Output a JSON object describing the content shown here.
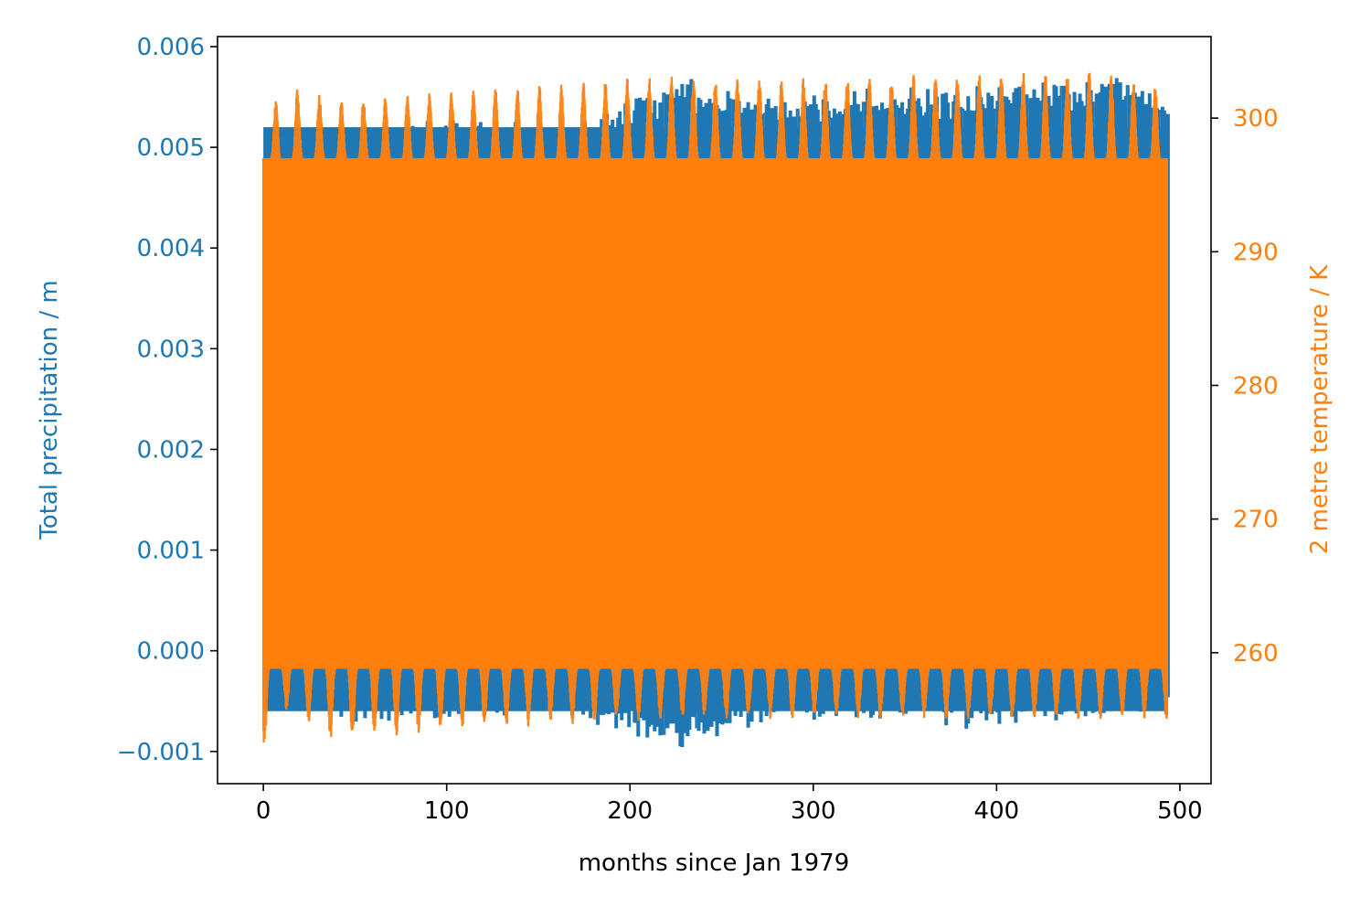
{
  "colors": {
    "precip": "#1f77b4",
    "temp": "#ff7f0e",
    "axis": "#000000",
    "background": "#ffffff"
  },
  "chart_data": {
    "type": "line",
    "title": "",
    "xlabel": "months since Jan 1979",
    "ylabel_left": "Total precipitation / m",
    "ylabel_right": "2 metre temperature / K",
    "xlim": [
      -25,
      517
    ],
    "ylim_left": [
      -0.00132,
      0.0061
    ],
    "ylim_right": [
      250.2,
      306.1
    ],
    "x_ticks": [
      0,
      100,
      200,
      300,
      400,
      500
    ],
    "x_tick_labels": [
      "0",
      "100",
      "200",
      "300",
      "400",
      "500"
    ],
    "y_left_ticks": [
      -0.001,
      0.0,
      0.001,
      0.002,
      0.003,
      0.004,
      0.005,
      0.006
    ],
    "y_left_tick_labels": [
      "−0.001",
      "0.000",
      "0.001",
      "0.002",
      "0.003",
      "0.004",
      "0.005",
      "0.006"
    ],
    "y_right_ticks": [
      260,
      270,
      280,
      290,
      300
    ],
    "y_right_tick_labels": [
      "260",
      "270",
      "280",
      "290",
      "300"
    ],
    "grid": false,
    "series": [
      {
        "name": "Total precipitation / m",
        "axis": "left",
        "x_range": [
          0,
          493
        ],
        "band_low_typical": -0.0006,
        "band_high_typical": 0.0052,
        "extremes": [
          {
            "x": 0,
            "min": -0.00055,
            "max": 0.0051
          },
          {
            "x": 55,
            "min": -0.00075,
            "max": 0.0052
          },
          {
            "x": 110,
            "min": -0.0007,
            "max": 0.0053
          },
          {
            "x": 165,
            "min": -0.00065,
            "max": 0.0052
          },
          {
            "x": 228,
            "min": -0.00098,
            "max": 0.0057
          },
          {
            "x": 280,
            "min": -0.0007,
            "max": 0.0055
          },
          {
            "x": 340,
            "min": -0.0007,
            "max": 0.0056
          },
          {
            "x": 395,
            "min": -0.0008,
            "max": 0.0056
          },
          {
            "x": 440,
            "min": -0.0007,
            "max": 0.0057
          },
          {
            "x": 470,
            "min": -0.0007,
            "max": 0.00575
          },
          {
            "x": 493,
            "min": -0.00065,
            "max": 0.0055
          }
        ]
      },
      {
        "name": "2 metre temperature / K",
        "axis": "right",
        "x_range": [
          0,
          493
        ],
        "seasonal_peak_typical": 301.5,
        "seasonal_trough_typical": 255.5,
        "extremes": [
          {
            "x": 2,
            "min": 252.8,
            "max": 297.0
          },
          {
            "x": 8,
            "min": 256.0,
            "max": 302.7
          },
          {
            "x": 38,
            "min": 253.2,
            "max": 301.5
          },
          {
            "x": 98,
            "min": 254.0,
            "max": 302.0
          },
          {
            "x": 222,
            "min": 255.0,
            "max": 303.2
          },
          {
            "x": 300,
            "min": 255.0,
            "max": 303.0
          },
          {
            "x": 398,
            "min": 255.0,
            "max": 303.5
          },
          {
            "x": 450,
            "min": 255.0,
            "max": 303.6
          },
          {
            "x": 492,
            "min": 255.0,
            "max": 302.5
          }
        ]
      }
    ]
  }
}
